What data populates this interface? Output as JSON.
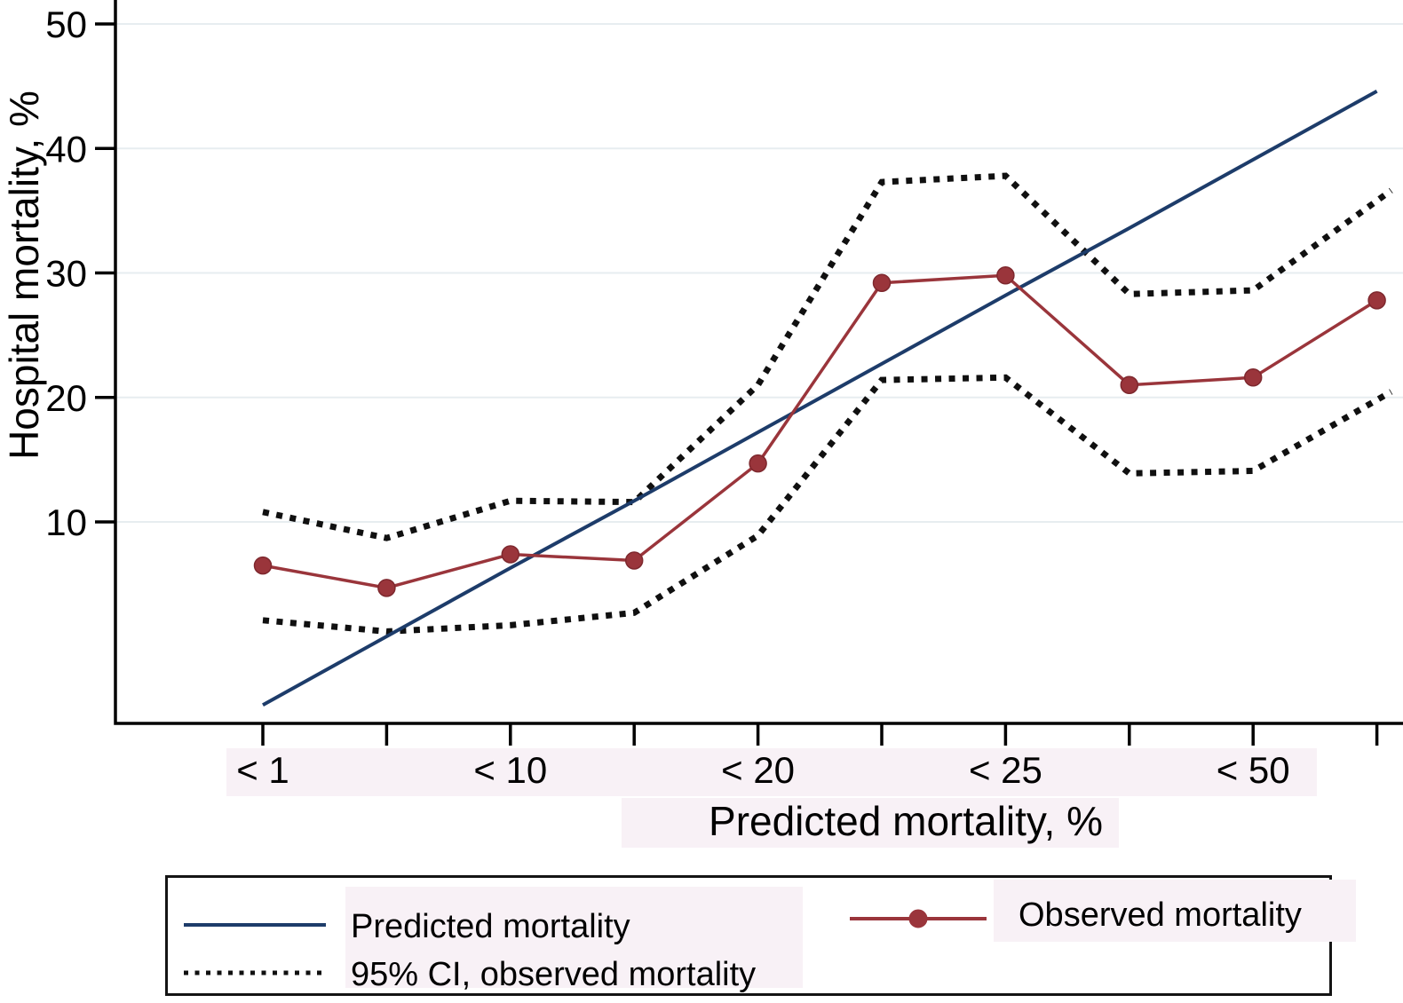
{
  "chart_data": {
    "type": "line",
    "title": "",
    "xlabel": "Predicted mortality, %",
    "ylabel": "Hospital mortality, %",
    "x_axis": {
      "kind": "categorical-bins",
      "bins": 10,
      "tick_labels": [
        {
          "position": 1,
          "label": "< 1"
        },
        {
          "position": 3,
          "label": "< 10"
        },
        {
          "position": 5,
          "label": "< 20"
        },
        {
          "position": 7,
          "label": "< 25"
        },
        {
          "position": 9,
          "label": "< 50"
        }
      ]
    },
    "y_axis": {
      "ticks": [
        10,
        20,
        30,
        40,
        50
      ],
      "range": [
        -6.2,
        51.9
      ],
      "grid": true
    },
    "series": [
      {
        "name": "Predicted mortality",
        "style": "solid",
        "color": "#1d3c6a",
        "values": [
          -4.7,
          0.8,
          6.3,
          11.7,
          17.2,
          22.7,
          28.2,
          33.6,
          39.1,
          44.6
        ]
      },
      {
        "name": "Observed mortality",
        "style": "solid-markers",
        "color": "#9a353b",
        "values": [
          6.5,
          4.7,
          7.4,
          6.9,
          14.7,
          29.2,
          29.8,
          21.0,
          21.6,
          27.8
        ]
      },
      {
        "name": "95% CI upper, observed mortality",
        "style": "dotted",
        "color": "#101010",
        "values": [
          10.8,
          8.7,
          11.7,
          11.6,
          21.0,
          37.3,
          37.8,
          28.3,
          28.6,
          35.8
        ]
      },
      {
        "name": "95% CI lower, observed mortality",
        "style": "dotted",
        "color": "#101010",
        "values": [
          2.1,
          1.2,
          1.7,
          2.7,
          8.9,
          21.4,
          21.6,
          13.9,
          14.1,
          19.8
        ]
      }
    ],
    "legend": {
      "position": "bottom",
      "items": [
        {
          "label": "Predicted mortality",
          "swatch": "solid-blue-line"
        },
        {
          "label": "95% CI, observed mortality",
          "swatch": "dotted-black-line"
        },
        {
          "label": "Observed mortality",
          "swatch": "maroon-line-with-marker"
        }
      ]
    },
    "colors": {
      "predicted": "#1d3c6a",
      "observed": "#9a353b",
      "ci": "#101010",
      "grid": "#e7edf0",
      "axis": "#000000",
      "tint": "#f8f1f6"
    }
  }
}
